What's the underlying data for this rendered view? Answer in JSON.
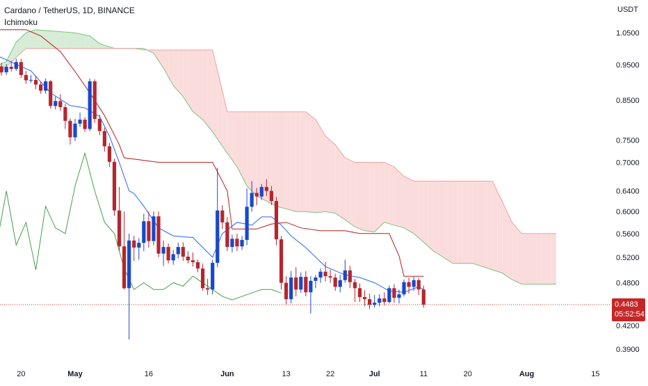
{
  "header": {
    "symbol_line": "Cardano / TetherUS, 1D, BINANCE",
    "indicator_name": "Ichimoku"
  },
  "price_axis": {
    "unit": "USDT",
    "ticks": [
      "1.0500",
      "0.9500",
      "0.8500",
      "0.7500",
      "0.7000",
      "0.6400",
      "0.6000",
      "0.5600",
      "0.5200",
      "0.4800",
      "0.4200",
      "0.3900"
    ]
  },
  "time_axis": {
    "ticks": [
      "20",
      "May",
      "16",
      "Jun",
      "13",
      "22",
      "Jul",
      "11",
      "20",
      "Aug",
      "15"
    ]
  },
  "last_price": {
    "value": "0.4483",
    "countdown": "05:52:54"
  },
  "colors": {
    "up": "#1848cc",
    "down": "#b5262e",
    "conversion_line": "#2962ff",
    "base_line": "#b71c1c",
    "lagging_span": "#43a047",
    "cloud_bull": "#d6ecd6",
    "cloud_bear": "#fbdcdc",
    "last_price": "#c62828",
    "axis_text": "#131722"
  },
  "chart_data": {
    "type": "candlestick",
    "title": "Cardano / TetherUS, 1D, BINANCE",
    "indicator": "Ichimoku",
    "ylabel": "USDT",
    "ylim": [
      0.375,
      1.09
    ],
    "log_scale": true,
    "grid": false,
    "dates": [
      "2022-04-14",
      "2022-04-15",
      "2022-04-16",
      "2022-04-17",
      "2022-04-18",
      "2022-04-19",
      "2022-04-20",
      "2022-04-21",
      "2022-04-22",
      "2022-04-23",
      "2022-04-24",
      "2022-04-25",
      "2022-04-26",
      "2022-04-27",
      "2022-04-28",
      "2022-04-29",
      "2022-04-30",
      "2022-05-01",
      "2022-05-02",
      "2022-05-03",
      "2022-05-04",
      "2022-05-05",
      "2022-05-06",
      "2022-05-07",
      "2022-05-08",
      "2022-05-09",
      "2022-05-10",
      "2022-05-11",
      "2022-05-12",
      "2022-05-13",
      "2022-05-14",
      "2022-05-15",
      "2022-05-16",
      "2022-05-17",
      "2022-05-18",
      "2022-05-19",
      "2022-05-20",
      "2022-05-21",
      "2022-05-22",
      "2022-05-23",
      "2022-05-24",
      "2022-05-25",
      "2022-05-26",
      "2022-05-27",
      "2022-05-28",
      "2022-05-29",
      "2022-05-30",
      "2022-05-31",
      "2022-06-01",
      "2022-06-02",
      "2022-06-03",
      "2022-06-04",
      "2022-06-05",
      "2022-06-06",
      "2022-06-07",
      "2022-06-08",
      "2022-06-09",
      "2022-06-10",
      "2022-06-11",
      "2022-06-12",
      "2022-06-13",
      "2022-06-14",
      "2022-06-15",
      "2022-06-16",
      "2022-06-17",
      "2022-06-18",
      "2022-06-19",
      "2022-06-20",
      "2022-06-21",
      "2022-06-22",
      "2022-06-23",
      "2022-06-24",
      "2022-06-25",
      "2022-06-26",
      "2022-06-27",
      "2022-06-28",
      "2022-06-29",
      "2022-06-30",
      "2022-07-01",
      "2022-07-02",
      "2022-07-03",
      "2022-07-04",
      "2022-07-05",
      "2022-07-06",
      "2022-07-07",
      "2022-07-08",
      "2022-07-09",
      "2022-07-10",
      "2022-07-11"
    ],
    "open": [
      0.958,
      0.942,
      0.945,
      0.928,
      0.944,
      0.938,
      0.958,
      0.92,
      0.905,
      0.906,
      0.893,
      0.876,
      0.902,
      0.835,
      0.848,
      0.832,
      0.797,
      0.757,
      0.79,
      0.8,
      0.777,
      0.902,
      0.802,
      0.772,
      0.736,
      0.701,
      0.602,
      0.538,
      0.472,
      0.548,
      0.536,
      0.544,
      0.582,
      0.547,
      0.591,
      0.526,
      0.537,
      0.515,
      0.525,
      0.537,
      0.521,
      0.515,
      0.512,
      0.502,
      0.472,
      0.47,
      0.511,
      0.602,
      0.58,
      0.537,
      0.551,
      0.538,
      0.549,
      0.609,
      0.636,
      0.629,
      0.648,
      0.64,
      0.62,
      0.55,
      0.48,
      0.456,
      0.488,
      0.47,
      0.489,
      0.466,
      0.483,
      0.488,
      0.497,
      0.49,
      0.488,
      0.474,
      0.484,
      0.499,
      0.481,
      0.472,
      0.459,
      0.456,
      0.448,
      0.451,
      0.457,
      0.452,
      0.472,
      0.458,
      0.463,
      0.481,
      0.474,
      0.484,
      0.47
    ],
    "close": [
      0.942,
      0.945,
      0.928,
      0.944,
      0.938,
      0.958,
      0.92,
      0.905,
      0.906,
      0.893,
      0.876,
      0.902,
      0.835,
      0.848,
      0.832,
      0.797,
      0.757,
      0.79,
      0.8,
      0.777,
      0.902,
      0.802,
      0.772,
      0.736,
      0.701,
      0.602,
      0.538,
      0.472,
      0.548,
      0.536,
      0.544,
      0.582,
      0.547,
      0.591,
      0.526,
      0.537,
      0.515,
      0.525,
      0.537,
      0.521,
      0.515,
      0.512,
      0.502,
      0.472,
      0.47,
      0.511,
      0.602,
      0.58,
      0.537,
      0.551,
      0.538,
      0.549,
      0.609,
      0.636,
      0.629,
      0.648,
      0.64,
      0.62,
      0.55,
      0.48,
      0.456,
      0.488,
      0.47,
      0.489,
      0.466,
      0.483,
      0.488,
      0.497,
      0.49,
      0.488,
      0.474,
      0.484,
      0.499,
      0.481,
      0.472,
      0.459,
      0.456,
      0.448,
      0.451,
      0.457,
      0.452,
      0.472,
      0.458,
      0.463,
      0.481,
      0.474,
      0.484,
      0.47,
      0.4483
    ],
    "high": [
      0.97,
      0.962,
      0.956,
      0.952,
      0.962,
      0.968,
      0.968,
      0.932,
      0.92,
      0.918,
      0.902,
      0.91,
      0.906,
      0.86,
      0.866,
      0.84,
      0.803,
      0.802,
      0.818,
      0.806,
      0.91,
      0.908,
      0.812,
      0.78,
      0.744,
      0.708,
      0.648,
      0.6,
      0.56,
      0.556,
      0.552,
      0.596,
      0.6,
      0.6,
      0.6,
      0.548,
      0.543,
      0.532,
      0.544,
      0.545,
      0.53,
      0.528,
      0.516,
      0.51,
      0.486,
      0.516,
      0.688,
      0.612,
      0.59,
      0.558,
      0.56,
      0.556,
      0.645,
      0.66,
      0.646,
      0.654,
      0.664,
      0.65,
      0.628,
      0.556,
      0.49,
      0.498,
      0.504,
      0.496,
      0.498,
      0.49,
      0.492,
      0.502,
      0.512,
      0.5,
      0.494,
      0.492,
      0.516,
      0.506,
      0.486,
      0.479,
      0.469,
      0.464,
      0.462,
      0.463,
      0.466,
      0.476,
      0.478,
      0.47,
      0.485,
      0.488,
      0.489,
      0.487,
      0.476
    ],
    "low": [
      0.93,
      0.922,
      0.918,
      0.92,
      0.93,
      0.932,
      0.912,
      0.895,
      0.898,
      0.88,
      0.868,
      0.868,
      0.828,
      0.826,
      0.822,
      0.777,
      0.74,
      0.748,
      0.782,
      0.77,
      0.772,
      0.792,
      0.762,
      0.724,
      0.69,
      0.592,
      0.53,
      0.47,
      0.402,
      0.514,
      0.516,
      0.53,
      0.536,
      0.54,
      0.52,
      0.506,
      0.51,
      0.508,
      0.518,
      0.514,
      0.51,
      0.505,
      0.496,
      0.468,
      0.462,
      0.463,
      0.504,
      0.568,
      0.53,
      0.528,
      0.53,
      0.532,
      0.54,
      0.6,
      0.612,
      0.622,
      0.63,
      0.612,
      0.54,
      0.47,
      0.448,
      0.45,
      0.46,
      0.465,
      0.46,
      0.436,
      0.472,
      0.48,
      0.482,
      0.48,
      0.468,
      0.466,
      0.48,
      0.472,
      0.452,
      0.452,
      0.446,
      0.442,
      0.444,
      0.446,
      0.447,
      0.45,
      0.451,
      0.45,
      0.46,
      0.464,
      0.468,
      0.462,
      0.444
    ],
    "conversion_line": {
      "name": "Conversion Line",
      "dates": [
        "2022-04-14",
        "2022-04-18",
        "2022-04-22",
        "2022-04-26",
        "2022-04-30",
        "2022-05-03",
        "2022-05-06",
        "2022-05-08",
        "2022-05-10",
        "2022-05-12",
        "2022-05-13",
        "2022-05-15",
        "2022-05-18",
        "2022-05-21",
        "2022-05-25",
        "2022-05-29",
        "2022-05-31",
        "2022-06-03",
        "2022-06-06",
        "2022-06-08",
        "2022-06-10",
        "2022-06-12",
        "2022-06-14",
        "2022-06-17",
        "2022-06-21",
        "2022-06-25",
        "2022-06-28",
        "2022-07-01",
        "2022-07-04",
        "2022-07-07",
        "2022-07-10",
        "2022-07-11"
      ],
      "values": [
        0.985,
        0.958,
        0.932,
        0.87,
        0.836,
        0.83,
        0.808,
        0.76,
        0.7,
        0.64,
        0.635,
        0.61,
        0.57,
        0.556,
        0.553,
        0.52,
        0.56,
        0.58,
        0.575,
        0.59,
        0.59,
        0.575,
        0.556,
        0.536,
        0.505,
        0.492,
        0.488,
        0.48,
        0.468,
        0.466,
        0.474,
        0.47
      ]
    },
    "base_line": {
      "name": "Base Line",
      "dates": [
        "2022-04-14",
        "2022-04-21",
        "2022-04-24",
        "2022-04-28",
        "2022-05-01",
        "2022-05-04",
        "2022-05-07",
        "2022-05-10",
        "2022-05-11",
        "2022-05-18",
        "2022-05-24",
        "2022-05-29",
        "2022-06-01",
        "2022-06-02",
        "2022-06-07",
        "2022-06-10",
        "2022-06-13",
        "2022-06-16",
        "2022-06-20",
        "2022-06-25",
        "2022-06-28",
        "2022-07-01",
        "2022-07-04",
        "2022-07-06",
        "2022-07-07",
        "2022-07-11"
      ],
      "values": [
        1.06,
        1.06,
        1.04,
        0.99,
        0.93,
        0.87,
        0.81,
        0.74,
        0.71,
        0.7,
        0.7,
        0.7,
        0.64,
        0.568,
        0.568,
        0.577,
        0.58,
        0.57,
        0.565,
        0.565,
        0.56,
        0.56,
        0.56,
        0.522,
        0.49,
        0.49
      ]
    },
    "lagging_span": {
      "name": "Lagging Span",
      "dates": [
        "2022-03-16",
        "2022-03-18",
        "2022-03-20",
        "2022-03-22",
        "2022-03-24",
        "2022-03-26",
        "2022-03-28",
        "2022-03-30",
        "2022-04-01",
        "2022-04-03",
        "2022-04-05",
        "2022-04-07",
        "2022-04-09",
        "2022-04-11",
        "2022-04-13",
        "2022-04-15",
        "2022-04-17",
        "2022-04-19",
        "2022-04-21",
        "2022-04-23",
        "2022-04-25",
        "2022-04-27",
        "2022-04-29",
        "2022-05-01",
        "2022-05-03",
        "2022-05-05",
        "2022-05-07",
        "2022-05-09",
        "2022-05-11",
        "2022-05-13",
        "2022-05-15",
        "2022-05-17",
        "2022-05-19",
        "2022-05-21",
        "2022-05-23",
        "2022-05-25",
        "2022-05-27",
        "2022-05-29",
        "2022-05-31",
        "2022-06-02",
        "2022-06-04",
        "2022-06-06",
        "2022-06-08",
        "2022-06-10",
        "2022-06-12"
      ],
      "values": [
        0.6,
        0.5,
        0.47,
        0.56,
        0.57,
        0.54,
        0.59,
        0.5,
        0.53,
        0.52,
        0.5,
        0.47,
        0.46,
        0.46,
        0.47,
        0.54,
        0.64,
        0.54,
        0.58,
        0.5,
        0.61,
        0.57,
        0.56,
        0.65,
        0.72,
        0.64,
        0.58,
        0.56,
        0.502,
        0.47,
        0.48,
        0.47,
        0.47,
        0.48,
        0.475,
        0.49,
        0.48,
        0.47,
        0.46,
        0.455,
        0.46,
        0.465,
        0.47,
        0.47,
        0.465
      ]
    },
    "leading_span_a": {
      "name": "Leading Span A",
      "dates": [
        "2022-04-14",
        "2022-04-17",
        "2022-04-19",
        "2022-04-21",
        "2022-04-23",
        "2022-04-27",
        "2022-05-01",
        "2022-05-04",
        "2022-05-06",
        "2022-05-09",
        "2022-05-11",
        "2022-05-13",
        "2022-05-15",
        "2022-05-17",
        "2022-05-19",
        "2022-05-21",
        "2022-05-23",
        "2022-05-25",
        "2022-05-27",
        "2022-05-29",
        "2022-06-01",
        "2022-06-03",
        "2022-06-05",
        "2022-06-07",
        "2022-06-09",
        "2022-06-11",
        "2022-06-13",
        "2022-06-15",
        "2022-06-17",
        "2022-06-19",
        "2022-06-21",
        "2022-06-23",
        "2022-06-25",
        "2022-06-27",
        "2022-06-29",
        "2022-07-01",
        "2022-07-03",
        "2022-07-05",
        "2022-07-07",
        "2022-07-09",
        "2022-07-11",
        "2022-07-13",
        "2022-07-15",
        "2022-07-17",
        "2022-07-19",
        "2022-07-21",
        "2022-07-23",
        "2022-07-25",
        "2022-07-27",
        "2022-07-29",
        "2022-07-31",
        "2022-08-02",
        "2022-08-04",
        "2022-08-06",
        "2022-08-07"
      ],
      "values": [
        0.94,
        0.96,
        1.02,
        1.05,
        1.06,
        1.055,
        1.05,
        1.04,
        1.015,
        1.0,
        1.0,
        1.0,
        1.0,
        0.985,
        0.94,
        0.89,
        0.86,
        0.82,
        0.8,
        0.77,
        0.72,
        0.69,
        0.65,
        0.63,
        0.62,
        0.61,
        0.605,
        0.6,
        0.6,
        0.598,
        0.6,
        0.597,
        0.585,
        0.572,
        0.565,
        0.563,
        0.58,
        0.575,
        0.57,
        0.56,
        0.545,
        0.53,
        0.52,
        0.51,
        0.51,
        0.51,
        0.505,
        0.5,
        0.495,
        0.485,
        0.478,
        0.478,
        0.478,
        0.478,
        0.478
      ]
    },
    "leading_span_b": {
      "name": "Leading Span B",
      "dates": [
        "2022-04-14",
        "2022-04-17",
        "2022-04-21",
        "2022-05-01",
        "2022-05-04",
        "2022-05-06",
        "2022-05-09",
        "2022-05-11",
        "2022-05-13",
        "2022-05-15",
        "2022-05-17",
        "2022-05-19",
        "2022-05-21",
        "2022-05-23",
        "2022-05-25",
        "2022-05-27",
        "2022-05-29",
        "2022-06-01",
        "2022-06-03",
        "2022-06-05",
        "2022-06-07",
        "2022-06-09",
        "2022-06-11",
        "2022-06-13",
        "2022-06-15",
        "2022-06-17",
        "2022-06-19",
        "2022-06-21",
        "2022-06-23",
        "2022-06-25",
        "2022-06-27",
        "2022-06-29",
        "2022-07-01",
        "2022-07-03",
        "2022-07-05",
        "2022-07-07",
        "2022-07-09",
        "2022-07-11",
        "2022-07-13",
        "2022-07-15",
        "2022-07-17",
        "2022-07-19",
        "2022-07-21",
        "2022-07-23",
        "2022-07-25",
        "2022-07-27",
        "2022-07-29",
        "2022-07-31",
        "2022-08-02",
        "2022-08-04",
        "2022-08-06",
        "2022-08-07"
      ],
      "values": [
        0.9,
        0.945,
        1.0,
        1.0,
        1.0,
        1.0,
        1.0,
        1.0,
        1.0,
        0.995,
        0.995,
        0.995,
        0.995,
        0.995,
        0.995,
        0.995,
        0.995,
        0.82,
        0.82,
        0.82,
        0.82,
        0.82,
        0.82,
        0.82,
        0.82,
        0.82,
        0.8,
        0.76,
        0.74,
        0.71,
        0.7,
        0.7,
        0.7,
        0.7,
        0.69,
        0.67,
        0.66,
        0.66,
        0.66,
        0.66,
        0.66,
        0.66,
        0.66,
        0.66,
        0.66,
        0.62,
        0.58,
        0.56,
        0.56,
        0.56,
        0.56,
        0.56
      ]
    }
  }
}
